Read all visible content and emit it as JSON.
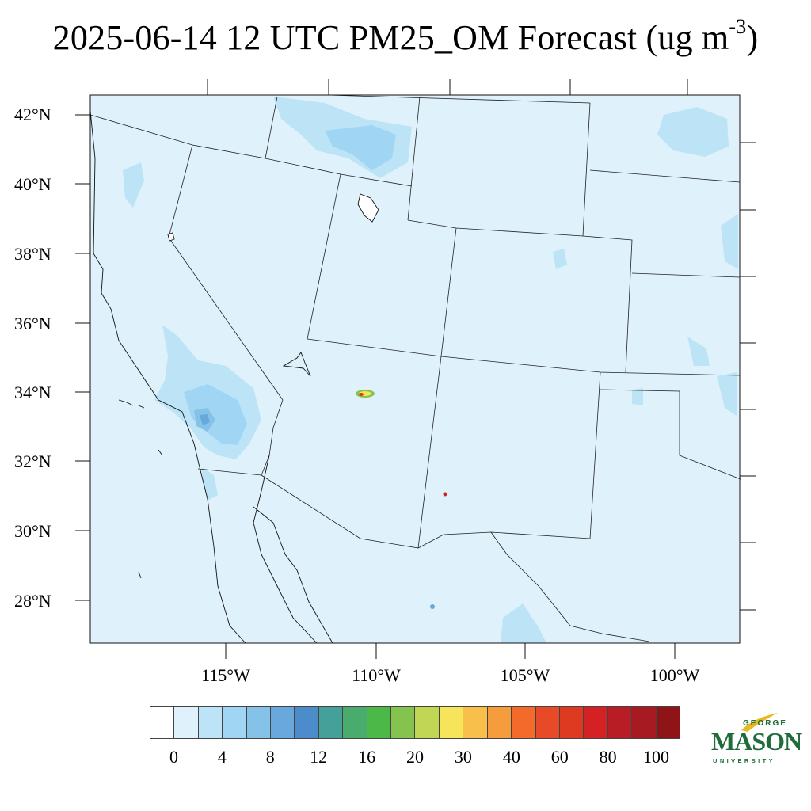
{
  "title": {
    "main": "2025-06-14 12 UTC PM25_OM Forecast (ug m",
    "sup": "-3",
    "close": ")"
  },
  "map": {
    "background_color": "#dff1fb",
    "lat_labels": [
      "42°N",
      "40°N",
      "38°N",
      "36°N",
      "34°N",
      "32°N",
      "30°N",
      "28°N"
    ],
    "lon_labels": [
      "115°W",
      "110°W",
      "105°W",
      "100°W"
    ]
  },
  "colorbar": {
    "colors": [
      "#ffffff",
      "#dff1fb",
      "#bde4f6",
      "#a0d6f4",
      "#84c2e8",
      "#68a8dc",
      "#4c8cca",
      "#46a09a",
      "#4aac6c",
      "#4cb848",
      "#84c44e",
      "#c2d656",
      "#f6e55a",
      "#f8c04a",
      "#f59c3c",
      "#f36a2a",
      "#e84a28",
      "#de3a22",
      "#d42124",
      "#b81c24",
      "#a81a22",
      "#8e1418"
    ],
    "labels": [
      "0",
      "4",
      "8",
      "12",
      "16",
      "20",
      "30",
      "40",
      "60",
      "80",
      "100"
    ]
  },
  "logo": {
    "line1": "GEORGE",
    "line2": "MASON",
    "line3": "UNIVERSITY"
  }
}
